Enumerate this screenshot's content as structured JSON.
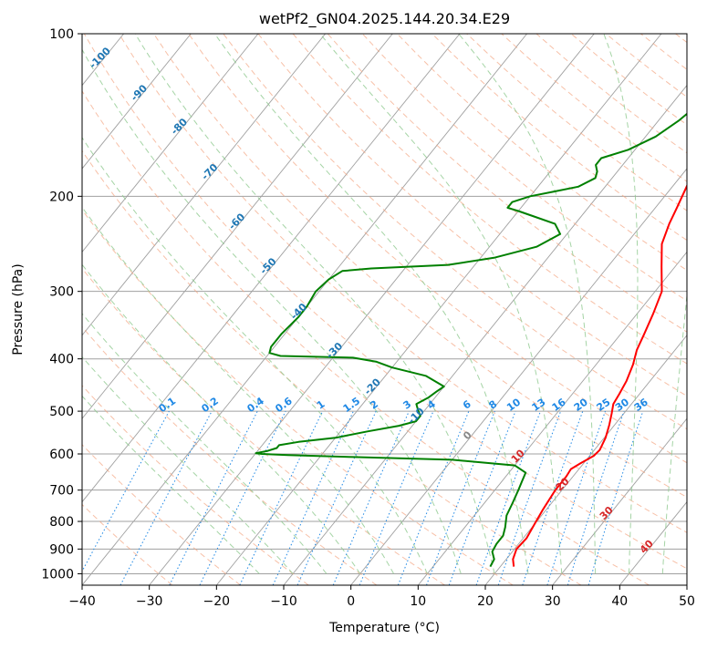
{
  "chart_data": {
    "type": "line",
    "subtype": "skew-t log-p",
    "title": "wetPf2_GN04.2025.144.20.34.E29",
    "xlabel": "Temperature (°C)",
    "ylabel": "Pressure (hPa)",
    "xlim": [
      -40,
      50
    ],
    "ylim": [
      1050,
      100
    ],
    "y_scale": "log",
    "grid": true,
    "x_ticks": [
      -40,
      -30,
      -20,
      -10,
      0,
      10,
      20,
      30,
      40,
      50
    ],
    "y_ticks": [
      100,
      200,
      300,
      400,
      500,
      600,
      700,
      800,
      900,
      1000
    ],
    "series": [
      {
        "color": "#ff0000",
        "points": [
          [
            22.0,
            970
          ],
          [
            21.0,
            940
          ],
          [
            20.3,
            900
          ],
          [
            20.5,
            860
          ],
          [
            20.0,
            810
          ],
          [
            19.5,
            760
          ],
          [
            19.0,
            700
          ],
          [
            19.0,
            660
          ],
          [
            18.8,
            640
          ],
          [
            19.5,
            625
          ],
          [
            20.6,
            605
          ],
          [
            20.8,
            590
          ],
          [
            20.2,
            560
          ],
          [
            19.2,
            530
          ],
          [
            18.2,
            505
          ],
          [
            17.3,
            485
          ],
          [
            17.0,
            465
          ],
          [
            16.5,
            440
          ],
          [
            15.5,
            410
          ],
          [
            14.3,
            385
          ],
          [
            13.5,
            360
          ],
          [
            12.4,
            330
          ],
          [
            11.0,
            300
          ],
          [
            8.0,
            270
          ],
          [
            5.3,
            245
          ],
          [
            4.0,
            225
          ],
          [
            3.2,
            210
          ],
          [
            2.0,
            190
          ],
          [
            0.8,
            172
          ],
          [
            -0.5,
            155
          ],
          [
            -2.5,
            137
          ],
          [
            -3.8,
            125
          ],
          [
            -4.5,
            118
          ],
          [
            -4.0,
            112
          ],
          [
            -3.8,
            105
          ],
          [
            -4.0,
            100
          ]
        ]
      },
      {
        "color": "#008000",
        "points": [
          [
            18.5,
            970
          ],
          [
            18.2,
            940
          ],
          [
            17.0,
            910
          ],
          [
            16.7,
            880
          ],
          [
            16.7,
            850
          ],
          [
            16.0,
            820
          ],
          [
            14.8,
            780
          ],
          [
            14.2,
            740
          ],
          [
            13.5,
            700
          ],
          [
            13.0,
            675
          ],
          [
            12.5,
            650
          ],
          [
            10.0,
            630
          ],
          [
            0.0,
            615
          ],
          [
            -15.0,
            608
          ],
          [
            -25.0,
            603
          ],
          [
            -29.0,
            600
          ],
          [
            -30.0,
            598
          ],
          [
            -28.5,
            592
          ],
          [
            -27.5,
            585
          ],
          [
            -27.5,
            578
          ],
          [
            -25.0,
            570
          ],
          [
            -20.0,
            560
          ],
          [
            -16.0,
            545
          ],
          [
            -12.0,
            532
          ],
          [
            -10.0,
            522
          ],
          [
            -10.0,
            510
          ],
          [
            -11.0,
            498
          ],
          [
            -12.0,
            485
          ],
          [
            -11.0,
            472
          ],
          [
            -10.5,
            460
          ],
          [
            -10.0,
            450
          ],
          [
            -14.0,
            430
          ],
          [
            -20.0,
            415
          ],
          [
            -23.0,
            405
          ],
          [
            -27.0,
            398
          ],
          [
            -38.0,
            395
          ],
          [
            -40.0,
            390
          ],
          [
            -40.5,
            380
          ],
          [
            -40.5,
            360
          ],
          [
            -40.0,
            335
          ],
          [
            -40.0,
            320
          ],
          [
            -40.5,
            300
          ],
          [
            -40.0,
            285
          ],
          [
            -39.0,
            275
          ],
          [
            -35.0,
            272
          ],
          [
            -24.0,
            268
          ],
          [
            -18.0,
            260
          ],
          [
            -13.0,
            248
          ],
          [
            -11.0,
            235
          ],
          [
            -13.0,
            225
          ],
          [
            -17.0,
            218
          ],
          [
            -20.0,
            213
          ],
          [
            -22.0,
            210
          ],
          [
            -22.0,
            205
          ],
          [
            -20.0,
            200
          ],
          [
            -17.0,
            196
          ],
          [
            -14.0,
            192
          ],
          [
            -12.5,
            185
          ],
          [
            -13.0,
            180
          ],
          [
            -14.0,
            175
          ],
          [
            -14.0,
            170
          ],
          [
            -11.0,
            164
          ],
          [
            -8.5,
            155
          ],
          [
            -7.0,
            145
          ],
          [
            -6.0,
            135
          ],
          [
            -4.5,
            122
          ],
          [
            -3.0,
            115
          ],
          [
            -2.0,
            110
          ],
          [
            -0.5,
            104
          ],
          [
            0.5,
            100
          ]
        ]
      }
    ],
    "isotherm_labels": [
      "-100",
      "-90",
      "-80",
      "-70",
      "-60",
      "-50",
      "-40",
      "-30",
      "-20",
      "-10",
      "0",
      "10",
      "20",
      "30",
      "40"
    ],
    "isotherm_label_colors": {
      "cold": "#1f77b4",
      "zero": "#888888",
      "warm": "#d62728"
    },
    "mixing_ratio_labels": [
      "0.1",
      "0.2",
      "0.4",
      "0.6",
      "1",
      "1.5",
      "2",
      "3",
      "4",
      "6",
      "8",
      "10",
      "13",
      "16",
      "20",
      "25",
      "30",
      "36"
    ],
    "mixing_ratio_label_color": "#1e88e5",
    "background_lines": {
      "isotherms": "#a0a0a0",
      "dry_adiabats": "#f4a582",
      "moist_adiabats": "#8fc98f",
      "mixing_ratio": "#1e88e5",
      "isobars": "#a0a0a0"
    }
  }
}
